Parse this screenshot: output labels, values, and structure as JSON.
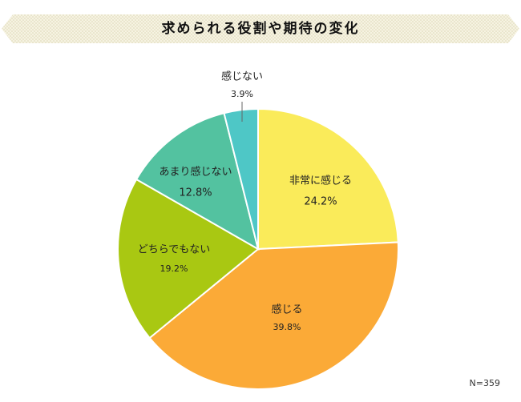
{
  "header": {
    "title": "求められる役割や期待の変化"
  },
  "chart_data": {
    "type": "pie",
    "title": "求められる役割や期待の変化",
    "slices": [
      {
        "label": "非常に感じる",
        "value": 24.2,
        "value_label": "24.2%",
        "color": "#FAEB5A"
      },
      {
        "label": "感じる",
        "value": 39.8,
        "value_label": "39.8%",
        "color": "#FBAA37"
      },
      {
        "label": "どちらでもない",
        "value": 19.2,
        "value_label": "19.2%",
        "color": "#A9C812"
      },
      {
        "label": "あまり感じない",
        "value": 12.8,
        "value_label": "12.8%",
        "color": "#53C2A0"
      },
      {
        "label": "感じない",
        "value": 3.9,
        "value_label": "3.9%",
        "color": "#4EC7C6"
      }
    ],
    "start": "12 o'clock",
    "direction": "clockwise",
    "sample_size": "N=359"
  }
}
